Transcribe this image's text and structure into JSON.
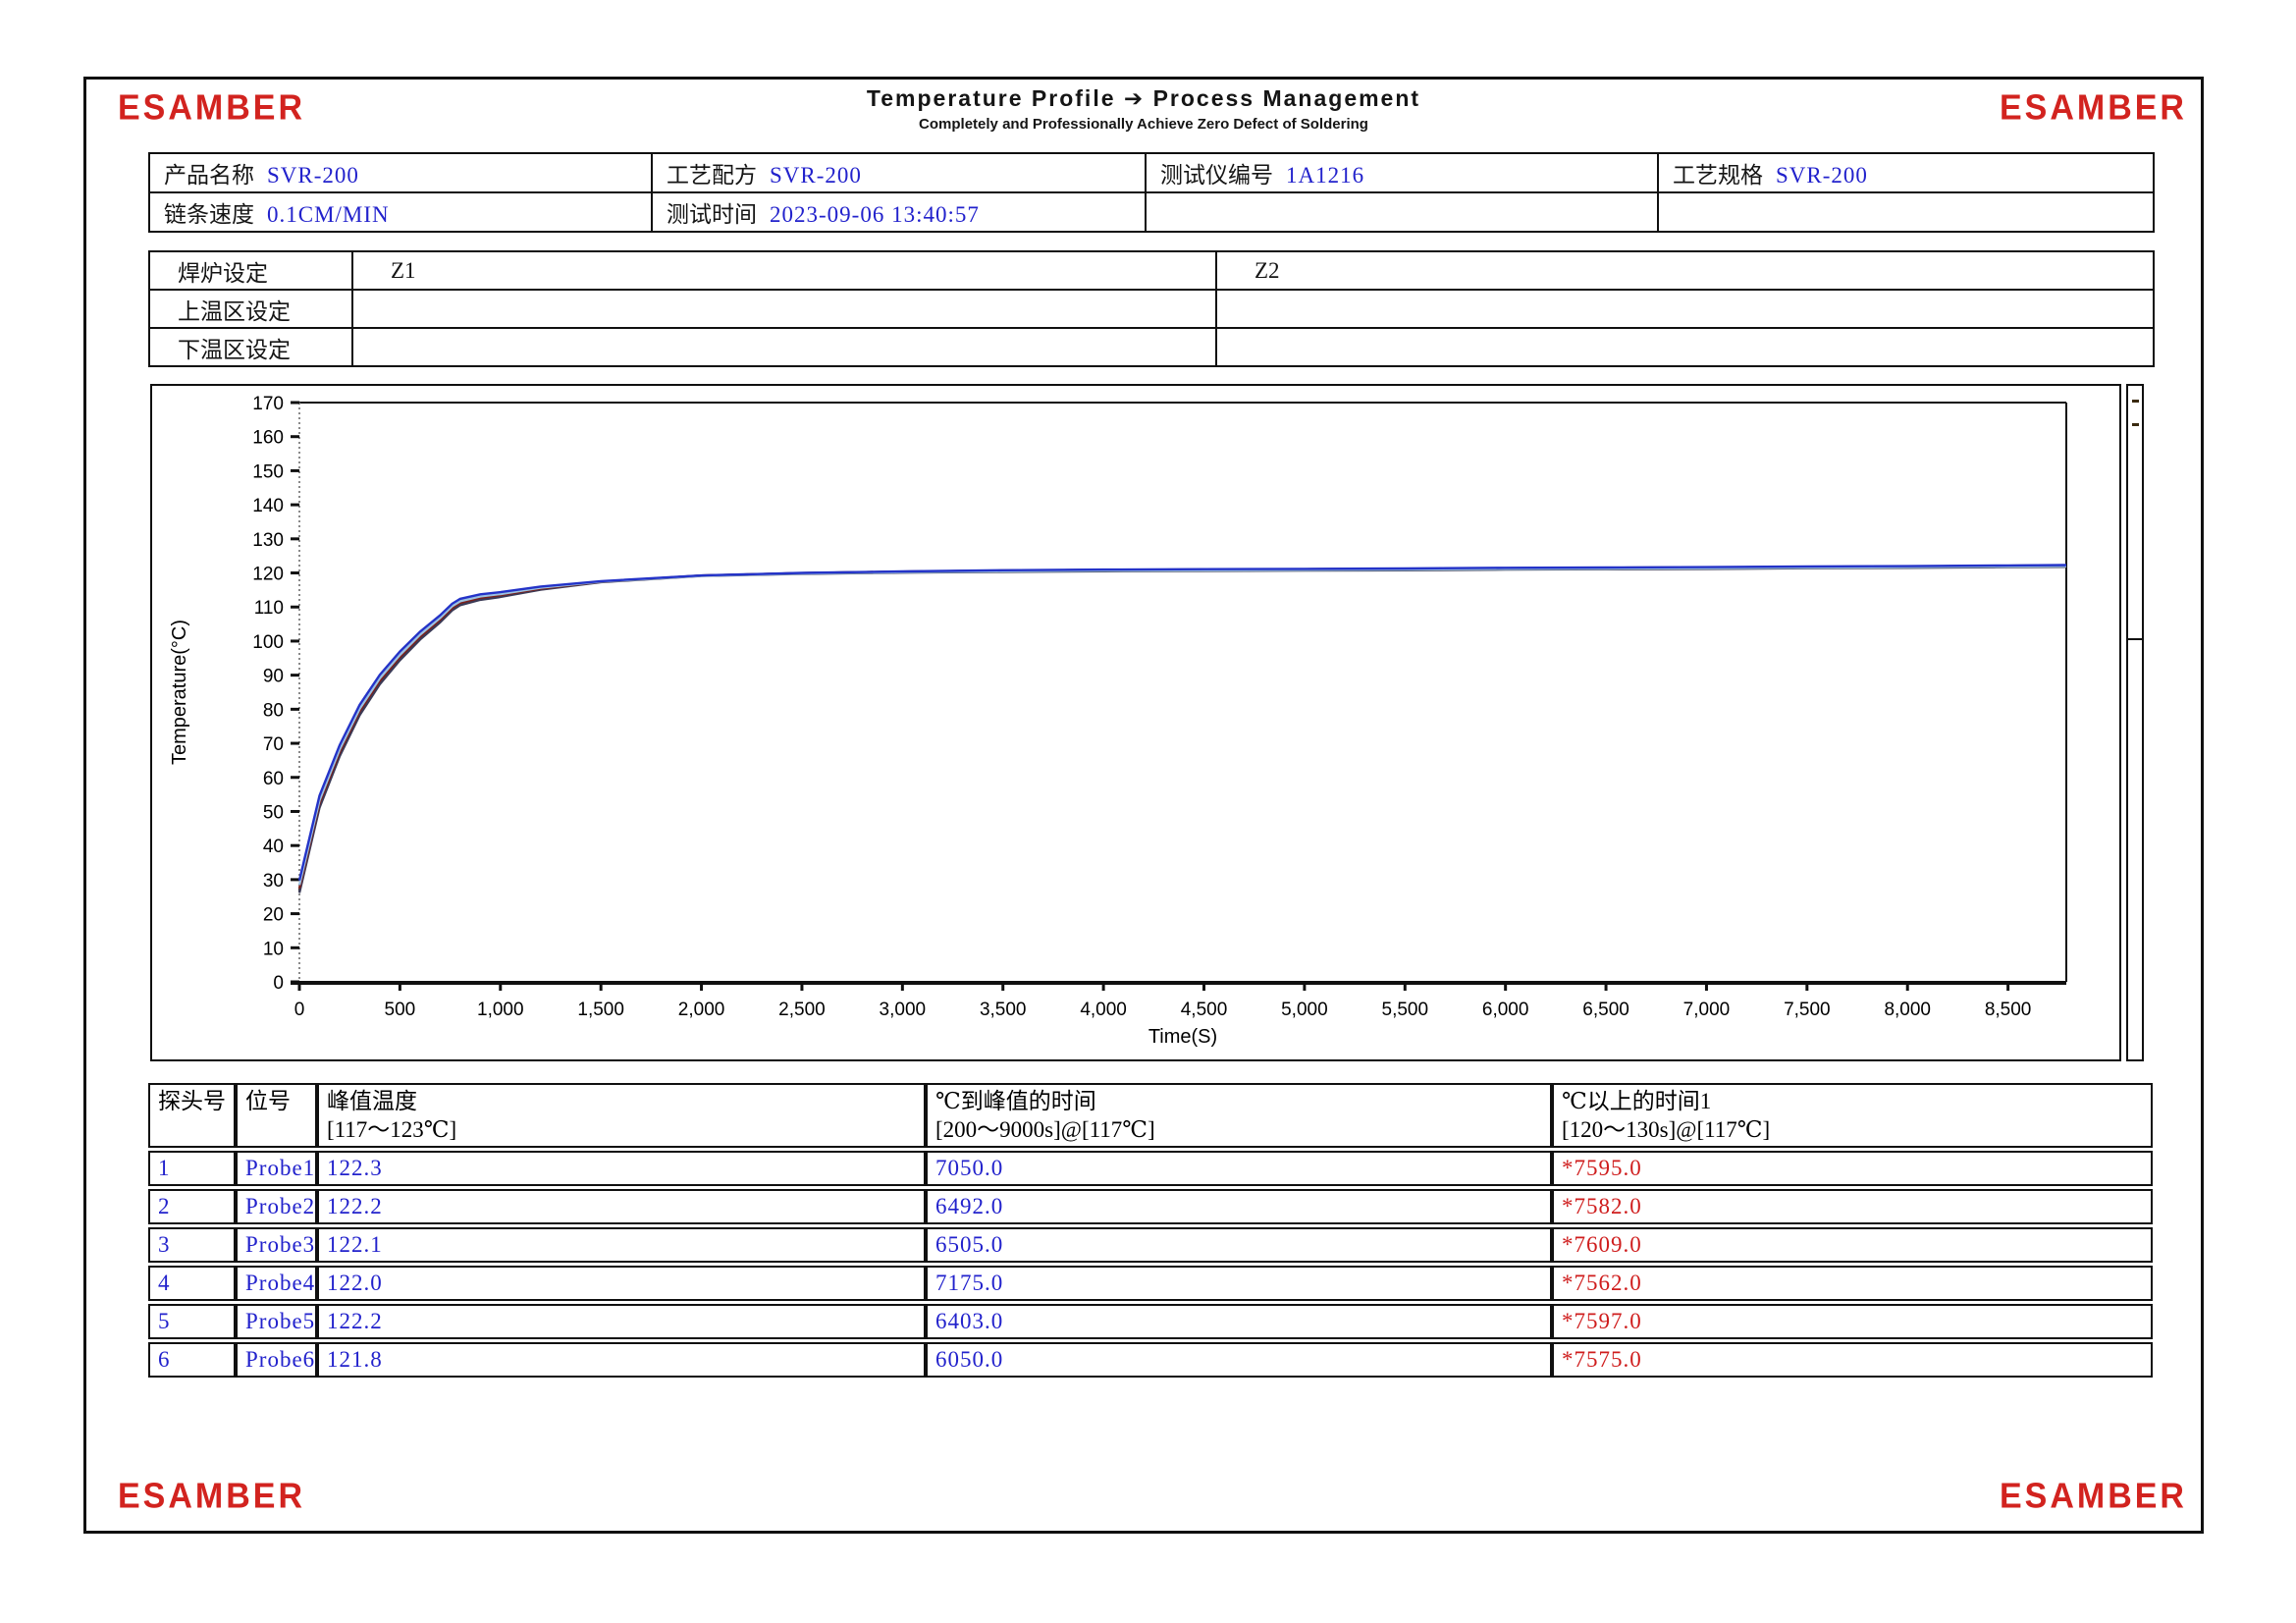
{
  "page": {
    "brand": "ESAMBER",
    "title_left": "Temperature Profile",
    "title_arrow": "➔",
    "title_right": "Process Management",
    "subtitle": "Completely and Professionally Achieve Zero Defect of Soldering"
  },
  "colors": {
    "brand_red": "#d2231f",
    "value_blue": "#2222cc",
    "alert_red": "#cf1d1d"
  },
  "info_table": {
    "rows": [
      [
        {
          "label": "产品名称",
          "value": "SVR-200"
        },
        {
          "label": "工艺配方",
          "value": "SVR-200"
        },
        {
          "label": "测试仪编号",
          "value": "1A1216"
        },
        {
          "label": "工艺规格",
          "value": "SVR-200"
        }
      ],
      [
        {
          "label": "链条速度",
          "value": "0.1CM/MIN"
        },
        {
          "label": "测试时间",
          "value": "2023-09-06 13:40:57"
        },
        {
          "label": "",
          "value": ""
        },
        {
          "label": "",
          "value": ""
        }
      ]
    ]
  },
  "oven_table": {
    "rows": [
      {
        "label": "焊炉设定",
        "z1": "Z1",
        "z2": "Z2"
      },
      {
        "label": "上温区设定",
        "z1": "",
        "z2": ""
      },
      {
        "label": "下温区设定",
        "z1": "",
        "z2": ""
      }
    ]
  },
  "chart_data": {
    "type": "line",
    "title": "",
    "xlabel": "Time(S)",
    "ylabel": "Temperature(°C)",
    "xlim": [
      0,
      8790
    ],
    "ylim": [
      0,
      170
    ],
    "x_tick_step": 500,
    "x_tick_max": 8500,
    "y_tick_step": 10,
    "grid": false,
    "x": [
      0,
      100,
      200,
      300,
      400,
      500,
      600,
      700,
      760,
      800,
      900,
      1000,
      1200,
      1500,
      2000,
      2500,
      3000,
      3500,
      4000,
      4500,
      5000,
      5500,
      6000,
      6500,
      7000,
      7500,
      8000,
      8500,
      8790
    ],
    "base_values": [
      27,
      52,
      67,
      79,
      88,
      95,
      101,
      106,
      109.5,
      111,
      112.5,
      113.3,
      115.3,
      117.4,
      119.2,
      119.9,
      120.3,
      120.6,
      120.8,
      120.9,
      121.0,
      121.1,
      121.3,
      121.4,
      121.5,
      121.7,
      121.8,
      122.0,
      122.1
    ],
    "series": [
      {
        "name": "Probe1",
        "color": "#2433c8",
        "rise_offset": 2.8,
        "final": 122.3
      },
      {
        "name": "Probe2",
        "color": "#7c1f1a",
        "rise_offset": 0.5,
        "final": 122.2
      },
      {
        "name": "Probe3",
        "color": "#1e1e1e",
        "rise_offset": -0.4,
        "final": 122.1
      },
      {
        "name": "Probe4",
        "color": "#9cc2e0",
        "rise_offset": 1.4,
        "final": 122.0
      },
      {
        "name": "Probe5",
        "color": "#64301f",
        "rise_offset": 0.0,
        "final": 122.2
      },
      {
        "name": "Probe6",
        "color": "#3a3a56",
        "rise_offset": -0.9,
        "final": 121.8
      }
    ]
  },
  "result_table": {
    "headers": [
      {
        "line1": "探头号",
        "line2": ""
      },
      {
        "line1": "位号",
        "line2": ""
      },
      {
        "line1": "峰值温度",
        "line2": "[117～123℃]"
      },
      {
        "line1": "℃到峰值的时间",
        "line2": "[200～9000s]@[117℃]"
      },
      {
        "line1": "℃以上的时间1",
        "line2": "[120～130s]@[117℃]"
      }
    ],
    "rows": [
      {
        "no": "1",
        "pos": "Probe1",
        "peak": "122.3",
        "time_to_peak": "7050.0",
        "time_above": "*7595.0"
      },
      {
        "no": "2",
        "pos": "Probe2",
        "peak": "122.2",
        "time_to_peak": "6492.0",
        "time_above": "*7582.0"
      },
      {
        "no": "3",
        "pos": "Probe3",
        "peak": "122.1",
        "time_to_peak": "6505.0",
        "time_above": "*7609.0"
      },
      {
        "no": "4",
        "pos": "Probe4",
        "peak": "122.0",
        "time_to_peak": "7175.0",
        "time_above": "*7562.0"
      },
      {
        "no": "5",
        "pos": "Probe5",
        "peak": "122.2",
        "time_to_peak": "6403.0",
        "time_above": "*7597.0"
      },
      {
        "no": "6",
        "pos": "Probe6",
        "peak": "121.8",
        "time_to_peak": "6050.0",
        "time_above": "*7575.0"
      }
    ]
  }
}
